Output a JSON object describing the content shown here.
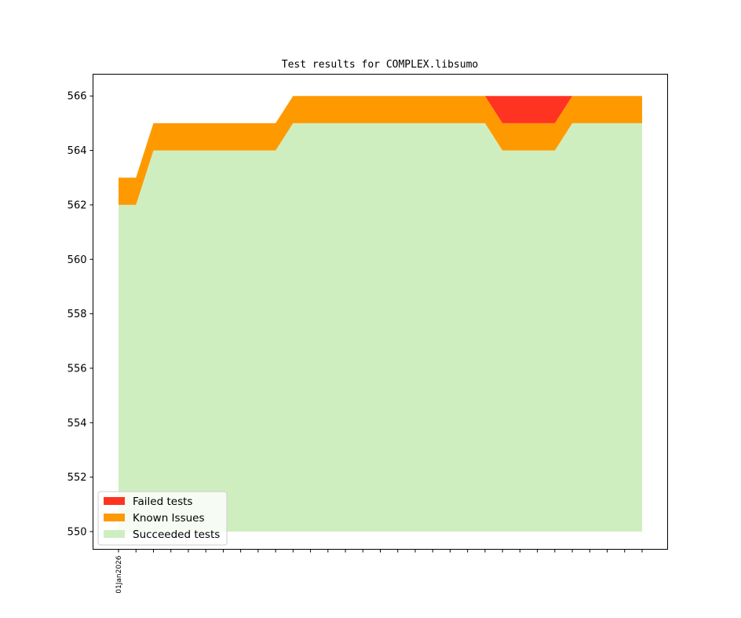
{
  "chart_data": {
    "type": "area",
    "title": "Test results for COMPLEX.libsumo",
    "xlabel": "",
    "ylabel": "",
    "ylim": [
      549.35,
      566.8
    ],
    "yticks": [
      550,
      552,
      554,
      556,
      558,
      560,
      562,
      564,
      566
    ],
    "grid": false,
    "legend_position": "lower-left",
    "x_tick_count": 31,
    "x_labels": [
      {
        "index": 0,
        "label": "01Jan2026"
      }
    ],
    "series": [
      {
        "name": "Succeeded tests",
        "color": "#cfeec0",
        "values": [
          562,
          562,
          564,
          564,
          564,
          564,
          564,
          564,
          564,
          564,
          565,
          565,
          565,
          565,
          565,
          565,
          565,
          565,
          565,
          565,
          565,
          565,
          564,
          564,
          564,
          564,
          565,
          565,
          565,
          565,
          565
        ]
      },
      {
        "name": "Known Issues",
        "color": "#ff9900",
        "values": [
          1,
          1,
          1,
          1,
          1,
          1,
          1,
          1,
          1,
          1,
          1,
          1,
          1,
          1,
          1,
          1,
          1,
          1,
          1,
          1,
          1,
          1,
          1,
          1,
          1,
          1,
          1,
          1,
          1,
          1,
          1
        ]
      },
      {
        "name": "Failed tests",
        "color": "#ff3322",
        "values": [
          0,
          0,
          0,
          0,
          0,
          0,
          0,
          0,
          0,
          0,
          0,
          0,
          0,
          0,
          0,
          0,
          0,
          0,
          0,
          0,
          0,
          0,
          1,
          1,
          1,
          1,
          0,
          0,
          0,
          0,
          0
        ]
      }
    ],
    "baseline": 550
  }
}
